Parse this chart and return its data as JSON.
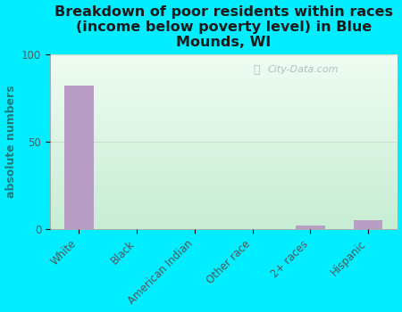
{
  "title": "Breakdown of poor residents within races\n(income below poverty level) in Blue\nMounds, WI",
  "categories": [
    "White",
    "Black",
    "American Indian",
    "Other race",
    "2+ races",
    "Hispanic"
  ],
  "values": [
    82,
    0,
    0,
    0,
    2,
    5
  ],
  "bar_color": "#b89ec4",
  "ylabel": "absolute numbers",
  "ylim": [
    0,
    100
  ],
  "yticks": [
    0,
    50,
    100
  ],
  "background_outer": "#00eeff",
  "bg_top_left": "#c8eedd",
  "bg_top_right": "#f0faf4",
  "bg_bottom_left": "#c0e8d0",
  "bg_bottom_right": "#e0f5e8",
  "title_fontsize": 11.5,
  "axis_label_fontsize": 9,
  "tick_fontsize": 8.5,
  "watermark": "City-Data.com",
  "grid_color": "#ccddcc",
  "tick_color": "#555555",
  "ylabel_color": "#1a7a7a"
}
